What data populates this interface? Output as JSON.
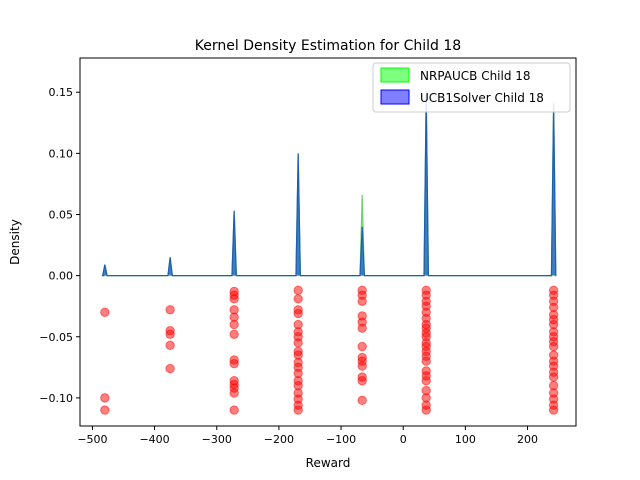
{
  "chart_data": {
    "type": "area",
    "title": "Kernel Density Estimation for Child 18",
    "xlabel": "Reward",
    "ylabel": "Density",
    "xlim": [
      -520,
      278
    ],
    "ylim": [
      -0.123,
      0.178
    ],
    "xticks": [
      -500,
      -400,
      -300,
      -200,
      -100,
      0,
      100,
      200
    ],
    "xtick_labels": [
      "−500",
      "−400",
      "−300",
      "−200",
      "−100",
      "0",
      "100",
      "200"
    ],
    "yticks": [
      -0.1,
      -0.05,
      0.0,
      0.05,
      0.1,
      0.15
    ],
    "ytick_labels": [
      "−0.10",
      "−0.05",
      "0.00",
      "0.05",
      "0.10",
      "0.15"
    ],
    "legend_position": "top-right",
    "series": [
      {
        "name": "NRPAUCB Child 18",
        "color": "#00ff00",
        "kind": "density",
        "baseline_range": [
          -480,
          244
        ],
        "peaks": [
          {
            "x": -480,
            "y": 0.009
          },
          {
            "x": -375,
            "y": 0.015
          },
          {
            "x": -272,
            "y": 0.053
          },
          {
            "x": -169,
            "y": 0.1
          },
          {
            "x": -66,
            "y": 0.066
          },
          {
            "x": 37,
            "y": 0.148
          },
          {
            "x": 242,
            "y": 0.141
          }
        ]
      },
      {
        "name": "UCB1Solver Child 18",
        "color": "#0000ff",
        "kind": "density",
        "baseline_range": [
          -480,
          244
        ],
        "peaks": [
          {
            "x": -480,
            "y": 0.009
          },
          {
            "x": -375,
            "y": 0.015
          },
          {
            "x": -272,
            "y": 0.053
          },
          {
            "x": -169,
            "y": 0.1
          },
          {
            "x": -66,
            "y": 0.04
          },
          {
            "x": 37,
            "y": 0.148
          },
          {
            "x": 242,
            "y": 0.141
          }
        ]
      }
    ],
    "scatter": {
      "color": "#ff0000",
      "points": [
        {
          "x": -480,
          "y": -0.03
        },
        {
          "x": -480,
          "y": -0.1
        },
        {
          "x": -480,
          "y": -0.11
        },
        {
          "x": -375,
          "y": -0.028
        },
        {
          "x": -375,
          "y": -0.045
        },
        {
          "x": -375,
          "y": -0.048
        },
        {
          "x": -375,
          "y": -0.057
        },
        {
          "x": -375,
          "y": -0.076
        },
        {
          "x": -272,
          "y": -0.013
        },
        {
          "x": -272,
          "y": -0.016
        },
        {
          "x": -272,
          "y": -0.019
        },
        {
          "x": -272,
          "y": -0.028
        },
        {
          "x": -272,
          "y": -0.034
        },
        {
          "x": -272,
          "y": -0.04
        },
        {
          "x": -272,
          "y": -0.048
        },
        {
          "x": -272,
          "y": -0.069
        },
        {
          "x": -272,
          "y": -0.072
        },
        {
          "x": -272,
          "y": -0.086
        },
        {
          "x": -272,
          "y": -0.089
        },
        {
          "x": -272,
          "y": -0.092
        },
        {
          "x": -272,
          "y": -0.096
        },
        {
          "x": -272,
          "y": -0.11
        },
        {
          "x": -169,
          "y": -0.012
        },
        {
          "x": -169,
          "y": -0.019
        },
        {
          "x": -169,
          "y": -0.028
        },
        {
          "x": -169,
          "y": -0.031
        },
        {
          "x": -169,
          "y": -0.04
        },
        {
          "x": -169,
          "y": -0.046
        },
        {
          "x": -169,
          "y": -0.05
        },
        {
          "x": -169,
          "y": -0.055
        },
        {
          "x": -169,
          "y": -0.062
        },
        {
          "x": -169,
          "y": -0.065
        },
        {
          "x": -169,
          "y": -0.071
        },
        {
          "x": -169,
          "y": -0.075
        },
        {
          "x": -169,
          "y": -0.08
        },
        {
          "x": -169,
          "y": -0.086
        },
        {
          "x": -169,
          "y": -0.09
        },
        {
          "x": -169,
          "y": -0.096
        },
        {
          "x": -169,
          "y": -0.101
        },
        {
          "x": -169,
          "y": -0.106
        },
        {
          "x": -169,
          "y": -0.11
        },
        {
          "x": -66,
          "y": -0.012
        },
        {
          "x": -66,
          "y": -0.016
        },
        {
          "x": -66,
          "y": -0.021
        },
        {
          "x": -66,
          "y": -0.033
        },
        {
          "x": -66,
          "y": -0.038
        },
        {
          "x": -66,
          "y": -0.043
        },
        {
          "x": -66,
          "y": -0.058
        },
        {
          "x": -66,
          "y": -0.067
        },
        {
          "x": -66,
          "y": -0.07
        },
        {
          "x": -66,
          "y": -0.074
        },
        {
          "x": -66,
          "y": -0.083
        },
        {
          "x": -66,
          "y": -0.086
        },
        {
          "x": -66,
          "y": -0.102
        },
        {
          "x": 37,
          "y": -0.012
        },
        {
          "x": 37,
          "y": -0.016
        },
        {
          "x": 37,
          "y": -0.021
        },
        {
          "x": 37,
          "y": -0.025
        },
        {
          "x": 37,
          "y": -0.03
        },
        {
          "x": 37,
          "y": -0.035
        },
        {
          "x": 37,
          "y": -0.04
        },
        {
          "x": 37,
          "y": -0.043
        },
        {
          "x": 37,
          "y": -0.047
        },
        {
          "x": 37,
          "y": -0.05
        },
        {
          "x": 37,
          "y": -0.055
        },
        {
          "x": 37,
          "y": -0.058
        },
        {
          "x": 37,
          "y": -0.062
        },
        {
          "x": 37,
          "y": -0.066
        },
        {
          "x": 37,
          "y": -0.07
        },
        {
          "x": 37,
          "y": -0.078
        },
        {
          "x": 37,
          "y": -0.082
        },
        {
          "x": 37,
          "y": -0.086
        },
        {
          "x": 37,
          "y": -0.094
        },
        {
          "x": 37,
          "y": -0.1
        },
        {
          "x": 37,
          "y": -0.106
        },
        {
          "x": 37,
          "y": -0.11
        },
        {
          "x": 242,
          "y": -0.012
        },
        {
          "x": 242,
          "y": -0.016
        },
        {
          "x": 242,
          "y": -0.021
        },
        {
          "x": 242,
          "y": -0.026
        },
        {
          "x": 242,
          "y": -0.032
        },
        {
          "x": 242,
          "y": -0.036
        },
        {
          "x": 242,
          "y": -0.04
        },
        {
          "x": 242,
          "y": -0.046
        },
        {
          "x": 242,
          "y": -0.05
        },
        {
          "x": 242,
          "y": -0.054
        },
        {
          "x": 242,
          "y": -0.058
        },
        {
          "x": 242,
          "y": -0.065
        },
        {
          "x": 242,
          "y": -0.07
        },
        {
          "x": 242,
          "y": -0.074
        },
        {
          "x": 242,
          "y": -0.079
        },
        {
          "x": 242,
          "y": -0.083
        },
        {
          "x": 242,
          "y": -0.09
        },
        {
          "x": 242,
          "y": -0.096
        },
        {
          "x": 242,
          "y": -0.101
        },
        {
          "x": 242,
          "y": -0.106
        },
        {
          "x": 242,
          "y": -0.11
        }
      ]
    }
  }
}
